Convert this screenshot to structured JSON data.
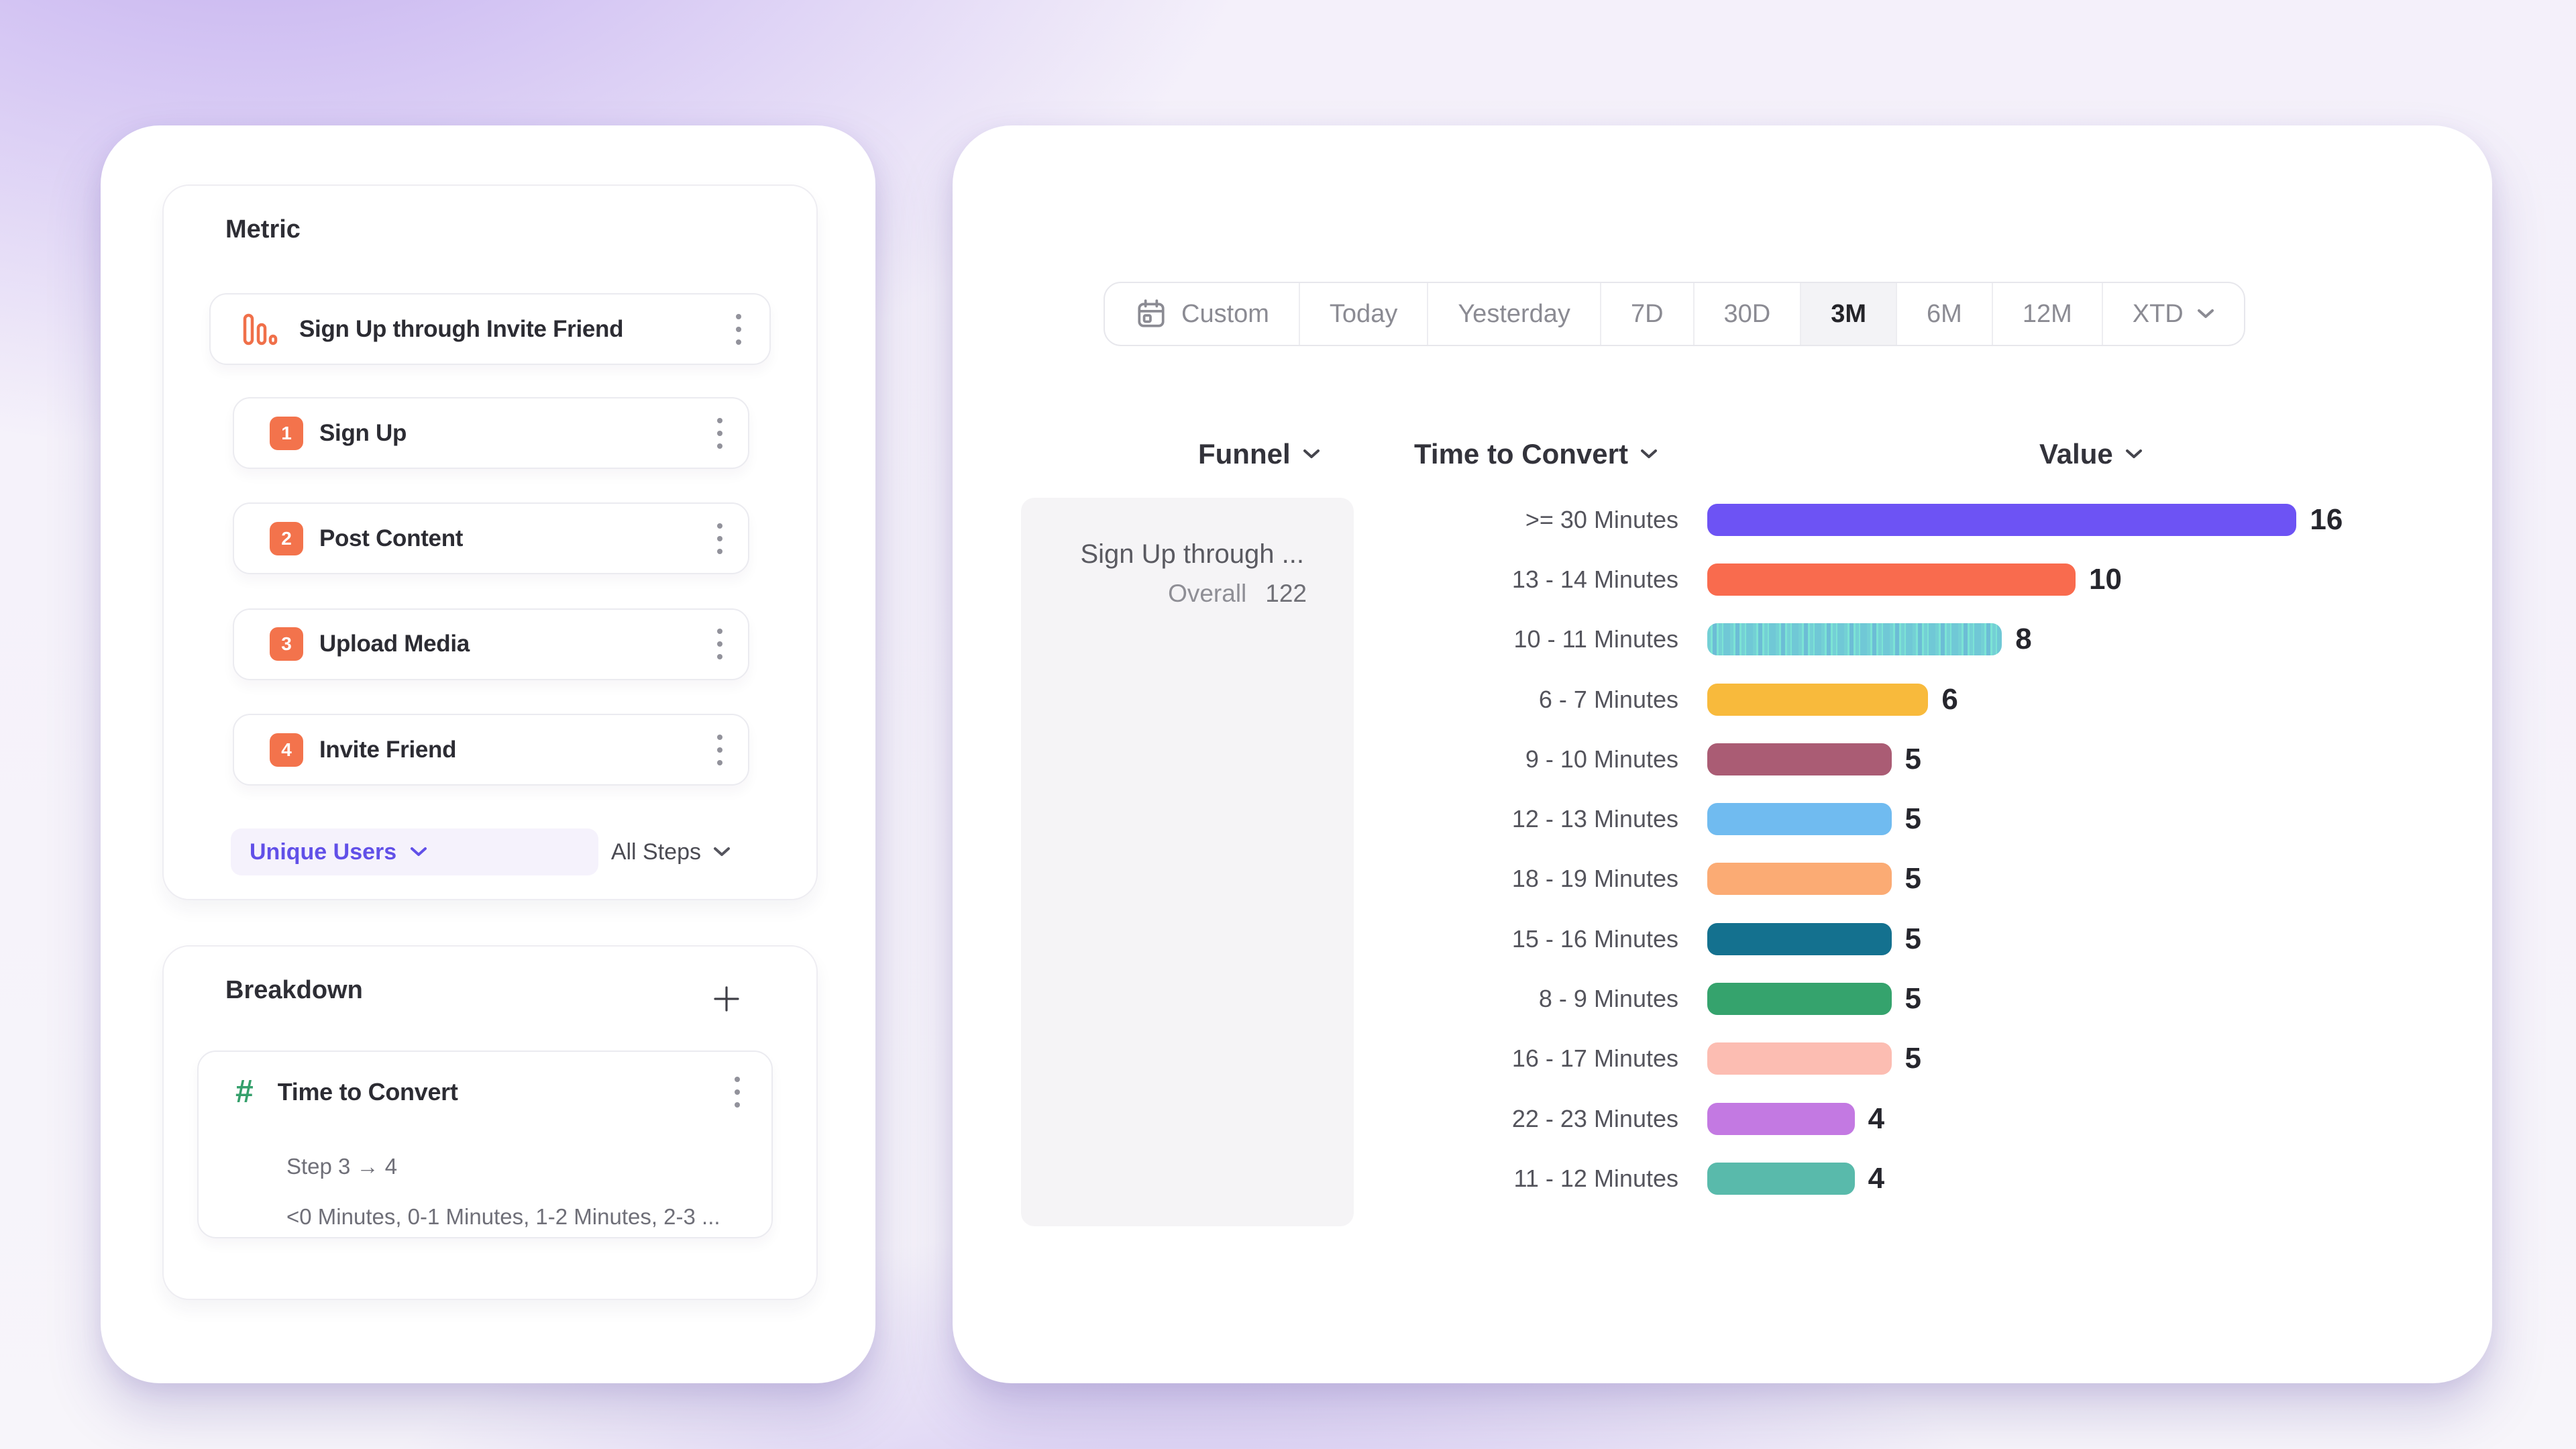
{
  "theme": {
    "accent_purple": "#6D53F4",
    "badge_orange": "#F3734C",
    "hash_green": "#35A06C",
    "pill_text_purple": "#6150E8"
  },
  "left_panel": {
    "metric": {
      "title": "Metric",
      "funnel_name": "Sign Up through Invite Friend",
      "steps": [
        {
          "number": "1",
          "label": "Sign Up"
        },
        {
          "number": "2",
          "label": "Post Content"
        },
        {
          "number": "3",
          "label": "Upload Media"
        },
        {
          "number": "4",
          "label": "Invite Friend"
        }
      ],
      "counting_method": "Unique Users",
      "steps_filter": "All Steps"
    },
    "breakdown": {
      "title": "Breakdown",
      "item": {
        "title": "Time to Convert",
        "step_range": "Step 3 → 4",
        "buckets": "<0 Minutes, 0-1 Minutes, 1-2 Minutes, 2-3 ..."
      }
    }
  },
  "right_panel": {
    "date_range": {
      "options": [
        "Custom",
        "Today",
        "Yesterday",
        "7D",
        "30D",
        "3M",
        "6M",
        "12M",
        "XTD"
      ],
      "selected": "3M"
    },
    "column_headers": {
      "funnel": "Funnel",
      "breakdown": "Time to Convert",
      "value": "Value"
    },
    "funnel_card": {
      "title": "Sign Up through ...",
      "overall_label": "Overall",
      "overall_value": "122"
    }
  },
  "chart_data": {
    "type": "bar",
    "orientation": "horizontal",
    "categories": [
      ">= 30 Minutes",
      "13 - 14 Minutes",
      "10 - 11 Minutes",
      "6 - 7 Minutes",
      "9 - 10 Minutes",
      "12 - 13 Minutes",
      "18 - 19 Minutes",
      "15 - 16 Minutes",
      "8 - 9 Minutes",
      "16 - 17 Minutes",
      "22 - 23 Minutes",
      "11 - 12 Minutes"
    ],
    "values": [
      16,
      10,
      8,
      6,
      5,
      5,
      5,
      5,
      5,
      5,
      4,
      4
    ],
    "bar_colors": [
      "#6D53F4",
      "#F96B4E",
      "#7CE3D5",
      "#F8BA3C",
      "#AA5C74",
      "#70BBF0",
      "#FBAB74",
      "#14718F",
      "#35A36D",
      "#FCBDB2",
      "#C379E2",
      "#59BAAB"
    ],
    "patterned_index": 2,
    "value_labels_shown": true,
    "xlim": [
      0,
      16.5
    ]
  }
}
